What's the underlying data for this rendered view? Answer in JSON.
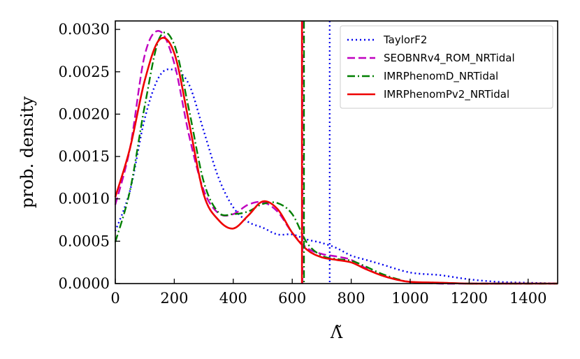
{
  "chart_data": {
    "type": "line",
    "title": "",
    "xlabel": "Λ̃",
    "ylabel": "prob. density",
    "xlim": [
      0,
      1500
    ],
    "ylim": [
      0,
      0.0031
    ],
    "x_ticks": [
      "0",
      "200",
      "400",
      "600",
      "800",
      "1000",
      "1200",
      "1400"
    ],
    "x_tick_values": [
      0,
      200,
      400,
      600,
      800,
      1000,
      1200,
      1400
    ],
    "y_ticks": [
      "0.0000",
      "0.0005",
      "0.0010",
      "0.0015",
      "0.0020",
      "0.0025",
      "0.0030"
    ],
    "y_tick_values": [
      0,
      0.0005,
      0.001,
      0.0015,
      0.002,
      0.0025,
      0.003
    ],
    "legend_position": "top-right",
    "series": [
      {
        "name": "TaylorF2",
        "color": "#0000ee",
        "style": "dotted",
        "vline": 727,
        "x": [
          0,
          50,
          100,
          150,
          200,
          250,
          300,
          350,
          400,
          450,
          500,
          550,
          600,
          650,
          700,
          750,
          800,
          850,
          900,
          1000,
          1100,
          1200,
          1300,
          1400,
          1500
        ],
        "y": [
          0.00062,
          0.0011,
          0.00195,
          0.00245,
          0.00252,
          0.00235,
          0.0018,
          0.00125,
          0.0009,
          0.00073,
          0.00066,
          0.00058,
          0.00058,
          0.00052,
          0.00048,
          0.00042,
          0.00033,
          0.00028,
          0.00023,
          0.00013,
          0.0001,
          5e-05,
          2e-05,
          1e-05,
          0.0
        ]
      },
      {
        "name": "SEOBNRv4_ROM_NRTidal",
        "color": "#bf00bf",
        "style": "dashed",
        "vline": 635,
        "x": [
          0,
          50,
          100,
          150,
          200,
          250,
          300,
          350,
          400,
          450,
          500,
          550,
          600,
          650,
          700,
          750,
          800,
          850,
          900,
          950,
          1000,
          1100,
          1200,
          1300,
          1500
        ],
        "y": [
          0.00093,
          0.0016,
          0.0027,
          0.00298,
          0.0026,
          0.00175,
          0.0011,
          0.00083,
          0.00082,
          0.00093,
          0.00096,
          0.00085,
          0.0006,
          0.00042,
          0.00035,
          0.00032,
          0.00028,
          0.00018,
          0.0001,
          5e-05,
          2e-05,
          0.0,
          0.0,
          0.0,
          0.0
        ]
      },
      {
        "name": "IMRPhenomD_NRTidal",
        "color": "#007f00",
        "style": "dashdot",
        "vline": 640,
        "x": [
          0,
          50,
          100,
          150,
          200,
          250,
          300,
          350,
          400,
          450,
          500,
          550,
          600,
          650,
          700,
          750,
          800,
          850,
          900,
          950,
          1000,
          1100,
          1200,
          1300,
          1500
        ],
        "y": [
          0.00049,
          0.0011,
          0.0021,
          0.0029,
          0.00282,
          0.00205,
          0.0012,
          0.00084,
          0.00082,
          0.00085,
          0.00094,
          0.00095,
          0.00082,
          0.00048,
          0.00033,
          0.00029,
          0.00027,
          0.0002,
          0.00012,
          6e-05,
          2e-05,
          1e-05,
          0.0,
          0.0,
          0.0
        ]
      },
      {
        "name": "IMRPhenomPv2_NRTidal",
        "color": "#ee0000",
        "style": "solid",
        "vline": 633,
        "x": [
          0,
          50,
          100,
          150,
          200,
          250,
          300,
          350,
          400,
          450,
          500,
          550,
          600,
          650,
          700,
          750,
          800,
          850,
          900,
          950,
          1000,
          1100,
          1200,
          1300,
          1500
        ],
        "y": [
          0.00102,
          0.0016,
          0.0024,
          0.00288,
          0.00272,
          0.0019,
          0.00105,
          0.00075,
          0.00065,
          0.0008,
          0.00097,
          0.00088,
          0.0006,
          0.0004,
          0.00031,
          0.00028,
          0.00025,
          0.00017,
          0.0001,
          5e-05,
          2e-05,
          1e-05,
          0.0,
          0.0,
          0.0
        ]
      }
    ]
  }
}
